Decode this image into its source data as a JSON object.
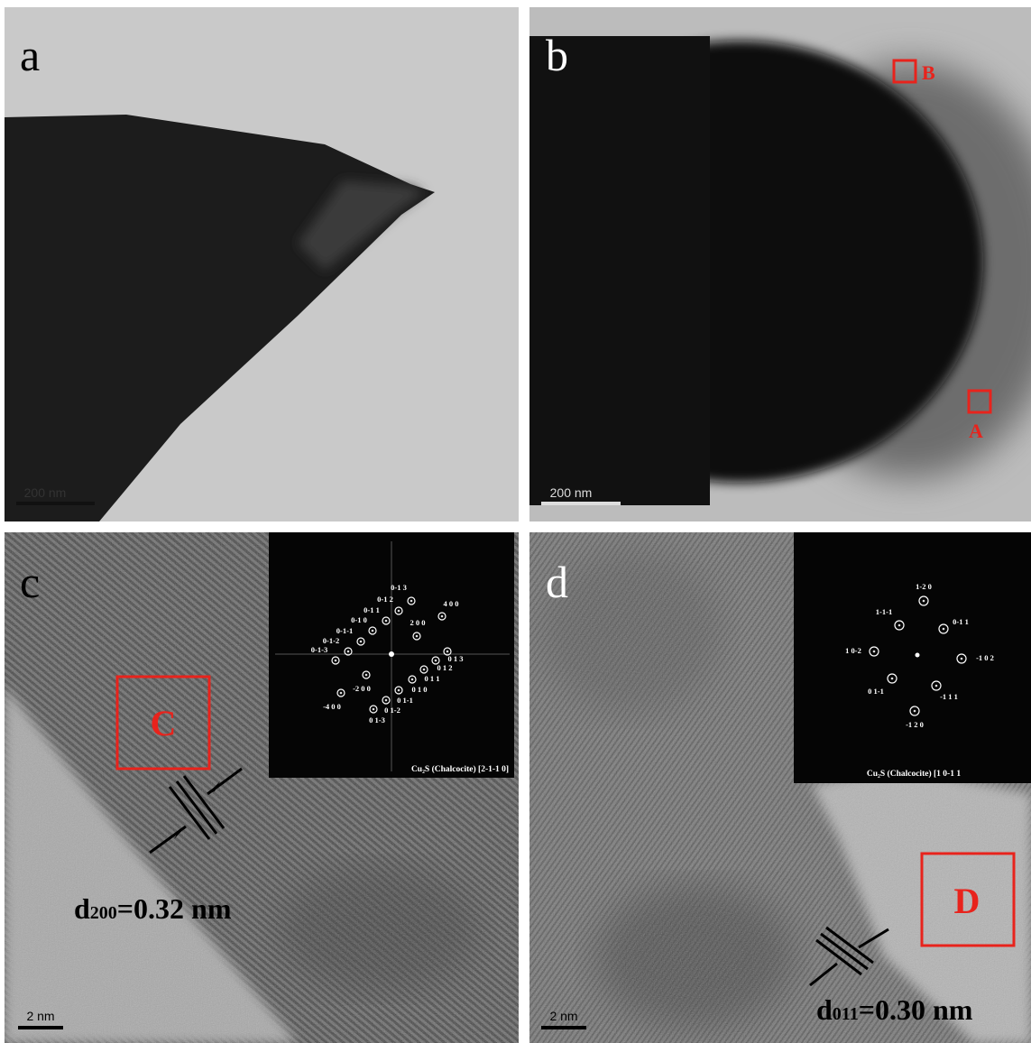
{
  "panels": [
    {
      "label": "a",
      "scale_bar": "200 nm"
    },
    {
      "label": "b",
      "scale_bar": "200 nm",
      "regions": [
        "B",
        "A"
      ]
    },
    {
      "label": "c",
      "scale_bar": "2 nm",
      "region": "C",
      "fft": {
        "spots": [
          "0-1 3",
          "0-1 2",
          "0-1 1",
          "0-1 0",
          "0-1-1",
          "0-1-2",
          "0-1-3",
          "4 0 0",
          "2 0 0",
          "0 1 3",
          "0 1 2",
          "0 1 1",
          "-2 0 0",
          "0 1 0",
          "0 1-1",
          "0 1-2",
          "0 1-3",
          "-4 0 0"
        ],
        "caption": "Cu₂S (Chalcocite) [2-1-1 0]"
      },
      "lattice": {
        "symbol": "d",
        "subscript": "200",
        "text": "=0.32 nm"
      }
    },
    {
      "label": "d",
      "scale_bar": "2 nm",
      "region": "D",
      "fft": {
        "spots": [
          "1-2 0",
          "1-1-1",
          "0-1 1",
          "1 0-2",
          "-1 0 2",
          "0 1-1",
          "-1 1 1",
          "-1 2 0"
        ],
        "caption": "Cu₂S (Chalcocite) [1 0-1 1"
      },
      "lattice": {
        "symbol": "d",
        "subscript": "011",
        "text": "=0.30 nm"
      }
    }
  ]
}
